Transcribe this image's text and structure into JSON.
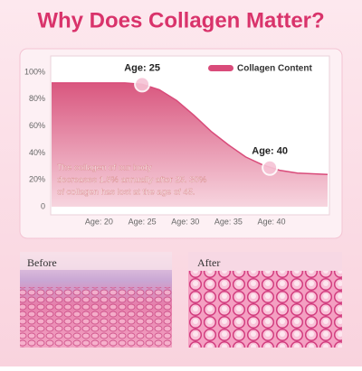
{
  "chart_data": {
    "type": "area",
    "title": "Why Does Collagen Matter?",
    "x": [
      14.5,
      20,
      23,
      25,
      27,
      29,
      31,
      33,
      35,
      37,
      39,
      41,
      43,
      46.5
    ],
    "series": [
      {
        "name": "Collagen Content",
        "color": "#d94b7a",
        "values": [
          92,
          92,
          92,
          91,
          87,
          79,
          68,
          56,
          46,
          37,
          31,
          27,
          25,
          24
        ]
      }
    ],
    "xlim": [
      14.5,
      46.5
    ],
    "xticks": [
      {
        "value": 20,
        "label": "Age: 20"
      },
      {
        "value": 25,
        "label": "Age: 25"
      },
      {
        "value": 30,
        "label": "Age: 30"
      },
      {
        "value": 35,
        "label": "Age: 35"
      },
      {
        "value": 40,
        "label": "Age: 40"
      }
    ],
    "ylim": [
      0,
      100
    ],
    "yticks": [
      0,
      {
        "value": 20,
        "label": "20%"
      },
      {
        "value": 40,
        "label": "40%"
      },
      {
        "value": 60,
        "label": "60%"
      },
      {
        "value": 80,
        "label": "80%"
      },
      {
        "value": 100,
        "label": "100%"
      }
    ],
    "legend": "top-right",
    "annotations": [
      {
        "text": "Age: 25",
        "x": 25,
        "y": 91
      },
      {
        "text": "Age: 40",
        "x": 39.8,
        "y": 29
      }
    ],
    "note_lines": [
      "The collagen of our body",
      "decreases 1.5% annually after 25. 30%",
      "of collagen has lost at the age of 45."
    ]
  },
  "panels": [
    {
      "label": "Before"
    },
    {
      "label": "After"
    }
  ]
}
